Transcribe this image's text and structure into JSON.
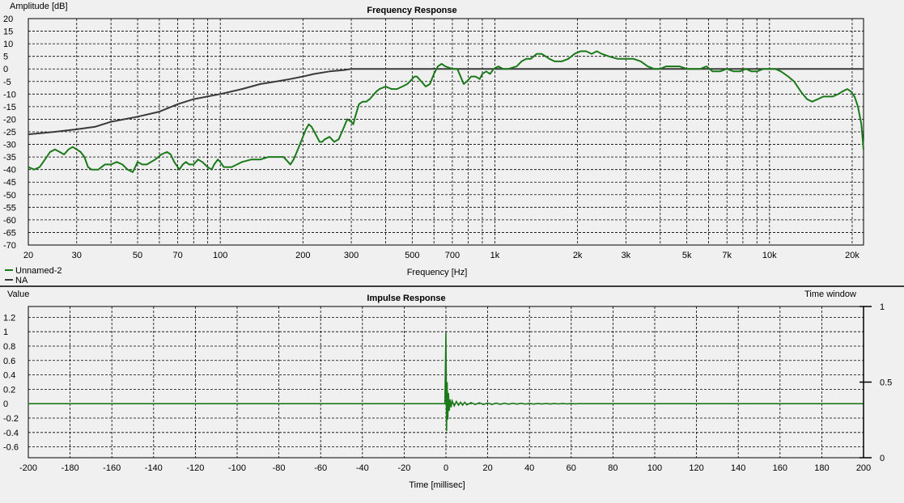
{
  "colors": {
    "background": "#f0f0f0",
    "grid": "#000000",
    "series_main": "#1a7a1a",
    "series_ref": "#3a3a3a",
    "divider": "#000000"
  },
  "chart_data": [
    {
      "type": "line",
      "title": "Frequency Response",
      "xlabel": "Frequency [Hz]",
      "ylabel": "Amplitude [dB]",
      "x_scale": "log",
      "xlim": [
        20,
        22000
      ],
      "ylim": [
        -70,
        20
      ],
      "y_ticks": [
        20,
        15,
        10,
        5,
        0,
        -5,
        -10,
        -15,
        -20,
        -25,
        -30,
        -35,
        -40,
        -45,
        -50,
        -55,
        -60,
        -65,
        -70
      ],
      "x_ticks": [
        {
          "value": 20,
          "label": "20"
        },
        {
          "value": 30,
          "label": "30"
        },
        {
          "value": 50,
          "label": "50"
        },
        {
          "value": 70,
          "label": "70"
        },
        {
          "value": 100,
          "label": "100"
        },
        {
          "value": 200,
          "label": "200"
        },
        {
          "value": 300,
          "label": "300"
        },
        {
          "value": 500,
          "label": "500"
        },
        {
          "value": 700,
          "label": "700"
        },
        {
          "value": 1000,
          "label": "1k"
        },
        {
          "value": 2000,
          "label": "2k"
        },
        {
          "value": 3000,
          "label": "3k"
        },
        {
          "value": 5000,
          "label": "5k"
        },
        {
          "value": 7000,
          "label": "7k"
        },
        {
          "value": 10000,
          "label": "10k"
        },
        {
          "value": 20000,
          "label": "20k"
        }
      ],
      "grid": true,
      "legend_position": "bottom-left",
      "series": [
        {
          "name": "Unnamed-2",
          "color": "#1a7a1a",
          "points": [
            [
              20,
              -39
            ],
            [
              21,
              -40
            ],
            [
              22,
              -39
            ],
            [
              23,
              -36
            ],
            [
              24,
              -33
            ],
            [
              25,
              -32
            ],
            [
              26,
              -33
            ],
            [
              27,
              -34
            ],
            [
              28,
              -32
            ],
            [
              29,
              -31
            ],
            [
              30,
              -32
            ],
            [
              31,
              -33
            ],
            [
              32,
              -35
            ],
            [
              33,
              -39
            ],
            [
              34,
              -40
            ],
            [
              35,
              -40
            ],
            [
              36,
              -40
            ],
            [
              38,
              -38
            ],
            [
              40,
              -38
            ],
            [
              42,
              -37
            ],
            [
              44,
              -38
            ],
            [
              46,
              -40
            ],
            [
              48,
              -41
            ],
            [
              49,
              -39
            ],
            [
              50,
              -37
            ],
            [
              52,
              -38
            ],
            [
              54,
              -38
            ],
            [
              56,
              -37
            ],
            [
              58,
              -36
            ],
            [
              61,
              -34
            ],
            [
              64,
              -33
            ],
            [
              66,
              -34
            ],
            [
              68,
              -37
            ],
            [
              70,
              -39
            ],
            [
              71,
              -40
            ],
            [
              73,
              -38
            ],
            [
              75,
              -37
            ],
            [
              77,
              -38
            ],
            [
              80,
              -38
            ],
            [
              83,
              -36
            ],
            [
              86,
              -37
            ],
            [
              88,
              -38
            ],
            [
              90,
              -39
            ],
            [
              93,
              -40
            ],
            [
              95,
              -38
            ],
            [
              98,
              -36
            ],
            [
              100,
              -37
            ],
            [
              103,
              -39
            ],
            [
              107,
              -39
            ],
            [
              110,
              -39
            ],
            [
              115,
              -38
            ],
            [
              120,
              -37
            ],
            [
              130,
              -36
            ],
            [
              140,
              -36
            ],
            [
              150,
              -35
            ],
            [
              160,
              -35
            ],
            [
              170,
              -35
            ],
            [
              180,
              -38
            ],
            [
              185,
              -36
            ],
            [
              190,
              -33
            ],
            [
              200,
              -27
            ],
            [
              205,
              -24
            ],
            [
              210,
              -22
            ],
            [
              215,
              -23
            ],
            [
              220,
              -25
            ],
            [
              230,
              -29
            ],
            [
              235,
              -29
            ],
            [
              240,
              -28
            ],
            [
              250,
              -27
            ],
            [
              260,
              -29
            ],
            [
              270,
              -28
            ],
            [
              280,
              -24
            ],
            [
              290,
              -20
            ],
            [
              300,
              -21
            ],
            [
              305,
              -22
            ],
            [
              310,
              -19
            ],
            [
              320,
              -14
            ],
            [
              330,
              -13
            ],
            [
              340,
              -13
            ],
            [
              350,
              -12
            ],
            [
              370,
              -9
            ],
            [
              380,
              -8
            ],
            [
              400,
              -7
            ],
            [
              420,
              -8
            ],
            [
              440,
              -8
            ],
            [
              460,
              -7
            ],
            [
              480,
              -6
            ],
            [
              500,
              -4
            ],
            [
              510,
              -3
            ],
            [
              520,
              -3
            ],
            [
              540,
              -5
            ],
            [
              560,
              -7
            ],
            [
              580,
              -6
            ],
            [
              600,
              -2
            ],
            [
              620,
              1
            ],
            [
              640,
              2
            ],
            [
              660,
              1
            ],
            [
              700,
              0
            ],
            [
              730,
              0
            ],
            [
              750,
              -3
            ],
            [
              770,
              -6
            ],
            [
              790,
              -5
            ],
            [
              820,
              -3
            ],
            [
              850,
              -3
            ],
            [
              880,
              -4
            ],
            [
              900,
              -2
            ],
            [
              930,
              -1
            ],
            [
              960,
              -2
            ],
            [
              990,
              0
            ],
            [
              1030,
              1
            ],
            [
              1070,
              0
            ],
            [
              1120,
              0
            ],
            [
              1200,
              1
            ],
            [
              1250,
              3
            ],
            [
              1300,
              4
            ],
            [
              1350,
              4
            ],
            [
              1420,
              6
            ],
            [
              1480,
              6
            ],
            [
              1530,
              5
            ],
            [
              1580,
              4
            ],
            [
              1650,
              3
            ],
            [
              1750,
              3
            ],
            [
              1850,
              4
            ],
            [
              1950,
              6
            ],
            [
              2050,
              7
            ],
            [
              2150,
              7
            ],
            [
              2250,
              6
            ],
            [
              2350,
              7
            ],
            [
              2450,
              6
            ],
            [
              2600,
              5
            ],
            [
              2800,
              4
            ],
            [
              3000,
              4
            ],
            [
              3200,
              4
            ],
            [
              3400,
              3
            ],
            [
              3600,
              1
            ],
            [
              3800,
              0
            ],
            [
              4000,
              0
            ],
            [
              4200,
              1
            ],
            [
              4400,
              1
            ],
            [
              4700,
              1
            ],
            [
              5000,
              0
            ],
            [
              5300,
              0
            ],
            [
              5600,
              0
            ],
            [
              5900,
              1
            ],
            [
              6200,
              -1
            ],
            [
              6600,
              -1
            ],
            [
              7000,
              0
            ],
            [
              7400,
              -1
            ],
            [
              7800,
              -1
            ],
            [
              8200,
              0
            ],
            [
              8600,
              -1
            ],
            [
              9000,
              -1
            ],
            [
              9500,
              0
            ],
            [
              10000,
              0
            ],
            [
              10500,
              0
            ],
            [
              11000,
              -1
            ],
            [
              11700,
              -3
            ],
            [
              12300,
              -5
            ],
            [
              13000,
              -9
            ],
            [
              13700,
              -12
            ],
            [
              14300,
              -13
            ],
            [
              15000,
              -12
            ],
            [
              15700,
              -11
            ],
            [
              16400,
              -11
            ],
            [
              17000,
              -11
            ],
            [
              17800,
              -10
            ],
            [
              18400,
              -9
            ],
            [
              19200,
              -8
            ],
            [
              19800,
              -9
            ],
            [
              20400,
              -11
            ],
            [
              21000,
              -15
            ],
            [
              21600,
              -22
            ],
            [
              22000,
              -32
            ]
          ]
        },
        {
          "name": "NA",
          "color": "#3a3a3a",
          "points": [
            [
              20,
              -26
            ],
            [
              25,
              -25
            ],
            [
              30,
              -24
            ],
            [
              35,
              -23
            ],
            [
              40,
              -21
            ],
            [
              50,
              -19
            ],
            [
              60,
              -17
            ],
            [
              70,
              -14
            ],
            [
              80,
              -12
            ],
            [
              100,
              -10
            ],
            [
              120,
              -8
            ],
            [
              140,
              -6
            ],
            [
              160,
              -5
            ],
            [
              180,
              -4
            ],
            [
              200,
              -3
            ],
            [
              220,
              -2
            ],
            [
              250,
              -1
            ],
            [
              280,
              -0.5
            ],
            [
              300,
              0
            ],
            [
              22000,
              0
            ]
          ]
        }
      ]
    },
    {
      "type": "line",
      "title": "Impulse Response",
      "xlabel": "Time [millisec]",
      "ylabel": "Value",
      "right_axis_label": "Time window",
      "xlim": [
        -200,
        200
      ],
      "ylim": [
        -0.75,
        1.35
      ],
      "y_ticks": [
        1.2,
        1,
        0.8,
        0.6,
        0.4,
        0.2,
        0,
        -0.2,
        -0.4,
        -0.6
      ],
      "y_tick_labels": [
        "1.2",
        "1",
        "0.8",
        "0.6",
        "0.4",
        "0.2",
        "0",
        "-0.2",
        "-0.4",
        "-0.6"
      ],
      "x_ticks": [
        -200,
        -180,
        -160,
        -140,
        -120,
        -100,
        -80,
        -60,
        -40,
        -20,
        0,
        20,
        40,
        60,
        80,
        100,
        120,
        140,
        160,
        180,
        200
      ],
      "right_ticks": [
        {
          "value": 1,
          "label": "1"
        },
        {
          "value": 0.5,
          "label": "0.5"
        },
        {
          "value": 0,
          "label": "0"
        }
      ],
      "grid": true,
      "series": [
        {
          "color": "#1a7a1a",
          "points": [
            [
              -200,
              0
            ],
            [
              -0.5,
              0
            ],
            [
              0,
              0.98
            ],
            [
              0.3,
              -0.38
            ],
            [
              0.6,
              0.3
            ],
            [
              0.9,
              -0.22
            ],
            [
              1.2,
              0.15
            ],
            [
              1.6,
              -0.1
            ],
            [
              2,
              0.06
            ],
            [
              2.5,
              -0.05
            ],
            [
              3,
              0.04
            ],
            [
              4,
              -0.03
            ],
            [
              5,
              0.03
            ],
            [
              6,
              -0.02
            ],
            [
              7,
              0.02
            ],
            [
              8,
              -0.02
            ],
            [
              9,
              0.02
            ],
            [
              10,
              -0.015
            ],
            [
              12,
              0.015
            ],
            [
              14,
              -0.01
            ],
            [
              16,
              0.012
            ],
            [
              18,
              -0.01
            ],
            [
              20,
              0.01
            ],
            [
              22,
              -0.01
            ],
            [
              24,
              0.008
            ],
            [
              26,
              -0.008
            ],
            [
              28,
              0.007
            ],
            [
              30,
              -0.007
            ],
            [
              32,
              0.006
            ],
            [
              34,
              -0.006
            ],
            [
              36,
              0.006
            ],
            [
              38,
              -0.005
            ],
            [
              40,
              0.005
            ],
            [
              42,
              -0.005
            ],
            [
              44,
              0.004
            ],
            [
              46,
              -0.004
            ],
            [
              48,
              0.004
            ],
            [
              50,
              -0.004
            ],
            [
              52,
              0.003
            ],
            [
              54,
              -0.003
            ],
            [
              56,
              0.003
            ],
            [
              58,
              -0.003
            ],
            [
              60,
              0.003
            ],
            [
              62,
              -0.002
            ],
            [
              64,
              0.002
            ],
            [
              65,
              0
            ],
            [
              200,
              0
            ]
          ]
        }
      ]
    }
  ],
  "legend": [
    {
      "label": "Unnamed-2",
      "color": "#1a7a1a"
    },
    {
      "label": "NA",
      "color": "#3a3a3a"
    }
  ]
}
